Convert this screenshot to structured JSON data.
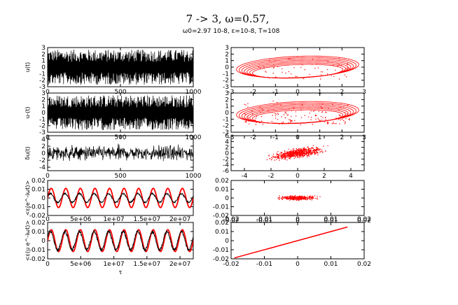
{
  "header": {
    "title": "7 -> 3, ω=0.57,",
    "subtitle": "ω0=2.97 10-8, ε=10-8, T=108"
  },
  "colors": {
    "red": "#ff0000",
    "black": "#000000",
    "frame": "#000000"
  },
  "chart_data": [
    {
      "id": "u-time",
      "type": "line",
      "ylabel": "u(t)",
      "xlim": [
        0,
        1000
      ],
      "ylim": [
        -3,
        3
      ],
      "xticks": [
        "0",
        "500",
        "1000"
      ],
      "yticks": [
        "-3",
        "-2",
        "-1",
        "0",
        "1",
        "2",
        "3"
      ],
      "series": [
        {
          "name": "u",
          "color": "#000000",
          "kind": "chaotic-fast",
          "amplitude": 2.7
        }
      ]
    },
    {
      "id": "u-phase",
      "type": "scatter",
      "xlim": [
        -3,
        3
      ],
      "ylim": [
        -3,
        3
      ],
      "xticks": [
        "-3",
        "-2",
        "-1",
        "0",
        "1",
        "2",
        "3"
      ],
      "yticks": [
        "-3",
        "-2",
        "-1",
        "0",
        "1",
        "2",
        "3"
      ],
      "series": [
        {
          "name": "(u, u')",
          "color": "#ff0000",
          "kind": "attractor-loop"
        }
      ]
    },
    {
      "id": "v-time",
      "type": "line",
      "ylabel": "u-(t)",
      "xlim": [
        0,
        1000
      ],
      "ylim": [
        -3,
        3
      ],
      "xticks": [
        "0",
        "500",
        "1000"
      ],
      "yticks": [
        "-3",
        "-2",
        "-1",
        "0",
        "1",
        "2",
        "3"
      ],
      "series": [
        {
          "name": "v",
          "color": "#000000",
          "kind": "chaotic-fast",
          "amplitude": 2.7
        }
      ]
    },
    {
      "id": "v-phase",
      "type": "scatter",
      "xlim": [
        -3,
        3
      ],
      "ylim": [
        -3,
        3
      ],
      "xticks": [
        "-3",
        "-2",
        "-1",
        "0",
        "1",
        "2",
        "3"
      ],
      "yticks": [
        "-3",
        "-2",
        "-1",
        "0",
        "1",
        "2",
        "3"
      ],
      "series": [
        {
          "name": "(v, v')",
          "color": "#ff0000",
          "kind": "attractor-loop-scattered"
        }
      ]
    },
    {
      "id": "du-time",
      "type": "line",
      "ylabel": "δu(t)",
      "xlim": [
        0,
        1000
      ],
      "ylim": [
        -5,
        5
      ],
      "xticks": [
        "0",
        "500",
        "1000"
      ],
      "yticks": [
        "-4",
        "-2",
        "0",
        "2",
        "4"
      ],
      "series": [
        {
          "name": "δu",
          "color": "#000000",
          "kind": "noise",
          "amplitude": 3.5
        }
      ]
    },
    {
      "id": "du-phase",
      "type": "scatter",
      "xlim": [
        -5,
        5
      ],
      "ylim": [
        -6,
        6
      ],
      "xticks": [
        "-4",
        "-2",
        "0",
        "2",
        "4"
      ],
      "yticks": [
        "-6",
        "-4",
        "-2",
        "0",
        "2",
        "4",
        "6"
      ],
      "series": [
        {
          "name": "(δu, δu')",
          "color": "#ff0000",
          "kind": "ellipse-cloud",
          "slope": 1.2
        }
      ]
    },
    {
      "id": "avg1-time",
      "type": "line",
      "ylabel": "<ε(e^-iωt)>",
      "xlim": [
        0,
        22000000
      ],
      "ylim": [
        -0.02,
        0.02
      ],
      "xticks": [],
      "yticks": [
        "-0.02",
        "-0.01",
        "0",
        "0.01",
        "0.02"
      ],
      "series": [
        {
          "name": "red",
          "color": "#ff0000",
          "kind": "sine",
          "amplitude": 0.011,
          "period": 2200000
        },
        {
          "name": "black",
          "color": "#000000",
          "kind": "noisy-sine",
          "amplitude": 0.005,
          "period": 2200000
        }
      ]
    },
    {
      "id": "avg1-phase",
      "type": "scatter",
      "xlim": [
        -0.02,
        0.02
      ],
      "ylim": [
        -0.02,
        0.02
      ],
      "xticks": [
        "-0.02",
        "-0.01",
        "0",
        "0.01",
        "0.02"
      ],
      "yticks": [
        "-0.02",
        "-0.01",
        "0",
        "0.01",
        "0.02"
      ],
      "series": [
        {
          "name": "cloud",
          "color": "#ff0000",
          "kind": "small-cloud",
          "spread": 0.006
        }
      ]
    },
    {
      "id": "avg2-time",
      "type": "line",
      "ylabel": "<ε(u e^-iωt)>",
      "xlim": [
        0,
        22000000
      ],
      "ylim": [
        -0.02,
        0.02
      ],
      "xticks": [
        "0",
        "5e+06",
        "1e+07",
        "1.5e+07",
        "2e+07"
      ],
      "xticks_top": [
        "0",
        "5e+06",
        "1e+07",
        "1.5e+07",
        "2e+07"
      ],
      "yticks": [
        "-0.02",
        "-0.01",
        "0",
        "0.01",
        "0.02"
      ],
      "xlabel": "τ",
      "series": [
        {
          "name": "red",
          "color": "#ff0000",
          "kind": "sine",
          "amplitude": 0.012,
          "period": 2200000
        },
        {
          "name": "black",
          "color": "#000000",
          "kind": "noisy-sine",
          "amplitude": 0.01,
          "period": 2200000
        }
      ]
    },
    {
      "id": "avg2-phase",
      "type": "line",
      "xlim": [
        -0.02,
        0.02
      ],
      "ylim": [
        -0.02,
        0.02
      ],
      "xticks": [
        "-0.02",
        "-0.01",
        "0",
        "0.01",
        "0.02"
      ],
      "xticks_top": [
        "-0.02",
        "-0.01",
        "0",
        "0.01",
        "0.02"
      ],
      "yticks": [
        "-0.02",
        "-0.01",
        "0",
        "0.01",
        "0.02"
      ],
      "series": [
        {
          "name": "diag",
          "color": "#ff0000",
          "kind": "diagonal",
          "from": [
            -0.019,
            -0.019
          ],
          "to": [
            0.015,
            0.015
          ]
        }
      ]
    }
  ]
}
